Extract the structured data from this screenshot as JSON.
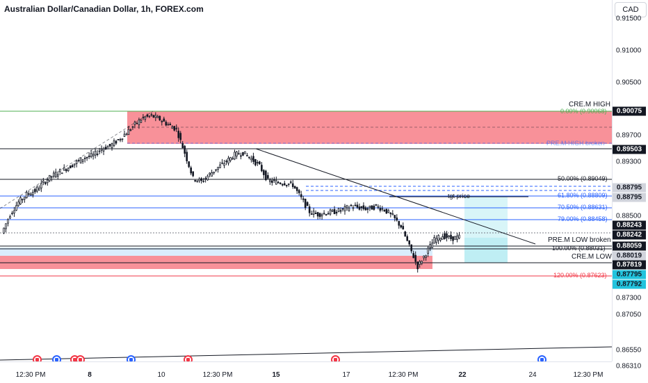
{
  "title": "Australian Dollar/Canadian Dollar, 1h, FOREX.com",
  "currency_button": "CAD",
  "price_ticks": [
    "0.91500",
    "0.91000",
    "0.90500",
    "0.89700",
    "0.89300",
    "0.88500",
    "0.87300",
    "0.87050",
    "0.86550",
    "0.86310"
  ],
  "price_tags": [
    {
      "text": "0.90075",
      "color": "#ffffff",
      "bg": "#131722"
    },
    {
      "text": "0.89503",
      "color": "#ffffff",
      "bg": "#131722"
    },
    {
      "text": "0.88795",
      "color": "#131722",
      "bg": "#d1d4dc"
    },
    {
      "text": "0.88795",
      "color": "#131722",
      "bg": "#d1d4dc"
    },
    {
      "text": "0.88243",
      "color": "#ffffff",
      "bg": "#131722"
    },
    {
      "text": "0.88242",
      "color": "#ffffff",
      "bg": "#131722"
    },
    {
      "text": "0.88059",
      "color": "#ffffff",
      "bg": "#131722"
    },
    {
      "text": "0.88019",
      "color": "#131722",
      "bg": "#d1d4dc"
    },
    {
      "text": "0.87819",
      "color": "#ffffff",
      "bg": "#131722"
    },
    {
      "text": "0.87795",
      "color": "#131722",
      "bg": "#22c3dd"
    },
    {
      "text": "0.87792",
      "color": "#131722",
      "bg": "#22c3dd"
    }
  ],
  "time_labels": [
    "12:30 PM",
    "8",
    "10",
    "12:30 PM",
    "15",
    "17",
    "12:30 PM",
    "22",
    "24",
    "12:30 PM"
  ],
  "level_labels": {
    "cre_high": "CRE.M HIGH",
    "fib_0": "0.00% (0.90068)",
    "pre_high_broken": "PRE.M HIGH broken",
    "fib_50": "50.00% (0.89049)",
    "fib_618": "61.80% (0.88809)",
    "tgt_price": "tgt price",
    "fib_705": "70.50% (0.88631)",
    "fib_79": "79.00% (0.88458)",
    "pre_low_broken": "PRE.M LOW broken",
    "fib_100": "100.00% (0.88031)",
    "cre_low": "CRE.M LOW",
    "fib_120": "120.00% (0.87623)"
  },
  "events": [
    "CA",
    "AU",
    "CA",
    "CA",
    "AU",
    "CA",
    "CA",
    "AU"
  ],
  "colors": {
    "up": "#131722",
    "down": "#131722",
    "zone_red": "#f23645",
    "fib_blue": "#2962ff",
    "target_cyan": "#22c3dd",
    "green_line": "#4caf50"
  },
  "chart_data": {
    "type": "candlestick",
    "symbol": "AUDCAD",
    "timeframe": "1h",
    "levels": [
      0.90075,
      0.90068,
      0.89503,
      0.89049,
      0.88809,
      0.88631,
      0.88458,
      0.88243,
      0.88242,
      0.88059,
      0.88031,
      0.88019,
      0.87819,
      0.87623
    ],
    "close_path": [
      0.883,
      0.8858,
      0.8876,
      0.8888,
      0.8893,
      0.8905,
      0.8915,
      0.8922,
      0.8928,
      0.8936,
      0.8943,
      0.8946,
      0.8956,
      0.896,
      0.8969,
      0.898,
      0.8992,
      0.9002,
      0.9005,
      0.9,
      0.8992,
      0.8985,
      0.895,
      0.8912,
      0.8907,
      0.8918,
      0.8928,
      0.8937,
      0.8947,
      0.895,
      0.8941,
      0.893,
      0.8908,
      0.8906,
      0.8905,
      0.8902,
      0.8882,
      0.8862,
      0.8858,
      0.886,
      0.8862,
      0.8865,
      0.887,
      0.8868,
      0.8866,
      0.887,
      0.8865,
      0.8855,
      0.884,
      0.881,
      0.878,
      0.88,
      0.882,
      0.8826,
      0.8822,
      0.8824
    ]
  }
}
